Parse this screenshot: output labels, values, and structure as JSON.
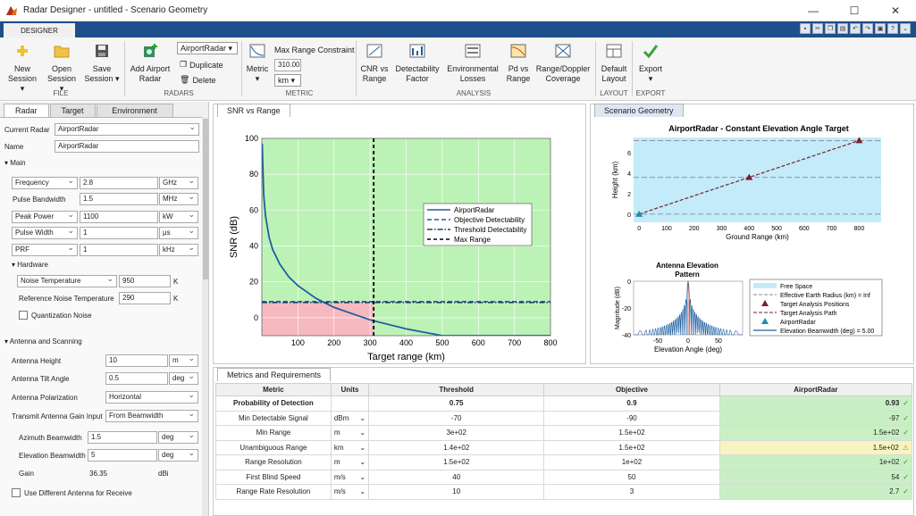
{
  "window": {
    "title": "Radar Designer - untitled - Scenario Geometry"
  },
  "app_tab": "DESIGNER",
  "ribbon": {
    "file": {
      "group": "FILE",
      "new": [
        "New",
        "Session"
      ],
      "open": [
        "Open",
        "Session"
      ],
      "save": [
        "Save",
        "Session"
      ]
    },
    "radars": {
      "group": "RADARS",
      "add": [
        "Add Airport",
        "Radar"
      ],
      "current": "AirportRadar",
      "duplicate": "Duplicate",
      "delete": "Delete"
    },
    "metric": {
      "group": "METRIC",
      "label": "Metric",
      "constraint_title": "Max Range Constraint",
      "constraint_value": "310.00",
      "unit": "km"
    },
    "analysis": {
      "group": "ANALYSIS",
      "items": [
        [
          "CNR vs",
          "Range"
        ],
        [
          "Detectability",
          "Factor"
        ],
        [
          "Environmental",
          "Losses"
        ],
        [
          "Pd vs",
          "Range"
        ],
        [
          "Range/Doppler",
          "Coverage"
        ]
      ]
    },
    "layout": {
      "group": "LAYOUT",
      "label": [
        "Default",
        "Layout"
      ]
    },
    "export": {
      "group": "EXPORT",
      "label": "Export"
    }
  },
  "left": {
    "tabs": [
      "Radar",
      "Target",
      "Environment"
    ],
    "current_radar_label": "Current Radar",
    "current_radar": "AirportRadar",
    "name_label": "Name",
    "name": "AirportRadar",
    "main": "Main",
    "main_rows": [
      {
        "label": "Frequency",
        "value": "2.8",
        "unit": "GHz"
      },
      {
        "label": "Pulse Bandwidth",
        "value": "1.5",
        "unit": "MHz"
      },
      {
        "label": "Peak Power",
        "value": "1100",
        "unit": "kW"
      },
      {
        "label": "Pulse Width",
        "value": "1",
        "unit": "μs"
      },
      {
        "label": "PRF",
        "value": "1",
        "unit": "kHz"
      }
    ],
    "hardware": "Hardware",
    "noise_temp_label": "Noise Temperature",
    "noise_temp": "950",
    "ref_noise_label": "Reference Noise Temperature",
    "ref_noise": "290",
    "kelvin": "K",
    "quant": "Quantization Noise",
    "antenna": "Antenna and Scanning",
    "ant_height_label": "Antenna Height",
    "ant_height": "10",
    "ant_height_unit": "m",
    "tilt_label": "Antenna Tilt Angle",
    "tilt": "0.5",
    "tilt_unit": "deg",
    "pol_label": "Antenna Polarization",
    "pol": "Horizontal",
    "gain_input_label": "Transmit Antenna Gain Input",
    "gain_input": "From Beamwidth",
    "az_label": "Azimuth Beamwidth",
    "az": "1.5",
    "az_unit": "deg",
    "el_label": "Elevation Beamwidth",
    "el": "5",
    "el_unit": "deg",
    "gain_label": "Gain",
    "gain": "36.35",
    "gain_unit": "dBi",
    "diff_ant": "Use Different Antenna for Receive"
  },
  "snr_tab": "SNR vs Range",
  "scen_tab": "Scenario Geometry",
  "metrics_tab": "Metrics and Requirements",
  "chart_data": [
    {
      "type": "line",
      "xlabel": "Target range (km)",
      "ylabel": "SNR (dB)",
      "xlim": [
        0,
        800
      ],
      "ylim": [
        -10,
        100
      ],
      "xticks": [
        100,
        200,
        300,
        400,
        500,
        600,
        700,
        800
      ],
      "yticks": [
        0,
        20,
        40,
        60,
        80,
        100
      ],
      "legend": [
        "AirportRadar",
        "Objective Detectability",
        "Threshold Detectability",
        "Max Range"
      ],
      "legend_position": "top-right",
      "series": [
        {
          "name": "AirportRadar",
          "x": [
            1,
            5,
            10,
            20,
            30,
            50,
            75,
            100,
            150,
            200,
            300,
            400,
            500,
            600,
            700,
            800
          ],
          "y": [
            97,
            69,
            57,
            45,
            38,
            29.8,
            22.7,
            17.9,
            10.8,
            5.8,
            -1.2,
            -6.2,
            -10.1,
            -13.3,
            -16,
            -18.3
          ]
        },
        {
          "name": "Objective Detectability",
          "y_const": 9
        },
        {
          "name": "Threshold Detectability",
          "y_const": 8.5
        },
        {
          "name": "Max Range",
          "x_const": 310
        }
      ]
    },
    {
      "type": "line",
      "title": "AirportRadar - Constant Elevation Angle Target",
      "xlabel": "Ground Range (km)",
      "ylabel": "Height (km)",
      "xlim": [
        -20,
        880
      ],
      "ylim": [
        -0.8,
        7.5
      ],
      "xticks": [
        0,
        100,
        200,
        300,
        400,
        500,
        600,
        700,
        800
      ],
      "yticks": [
        0,
        2,
        4,
        6
      ],
      "series": [
        {
          "name": "Target Analysis Path",
          "x": [
            0,
            400,
            800
          ],
          "y": [
            0,
            3.6,
            7.2
          ]
        },
        {
          "name": "Target Analysis Positions",
          "x": [
            400,
            800
          ],
          "y": [
            3.6,
            7.2
          ]
        },
        {
          "name": "AirportRadar",
          "x": [
            0
          ],
          "y": [
            0
          ]
        }
      ],
      "hlines": [
        0,
        3.6,
        7.2
      ]
    },
    {
      "type": "line",
      "title": "Antenna Elevation Pattern",
      "xlabel": "Elevation Angle (deg)",
      "ylabel": "Magnitude (dB)",
      "xlim": [
        -90,
        90
      ],
      "ylim": [
        -40,
        0
      ],
      "xticks": [
        -50,
        0,
        50
      ],
      "yticks": [
        0,
        -20,
        -40
      ]
    }
  ],
  "scen_legend": [
    "Free Space",
    "Effective Earth Radius (km) = Inf",
    "Target Analysis Positions",
    "Target Analysis Path",
    "AirportRadar",
    "Elevation Beamwidth (deg) = 5.00"
  ],
  "metrics": {
    "headers": [
      "Metric",
      "Units",
      "Threshold",
      "Objective",
      "AirportRadar"
    ],
    "rows": [
      {
        "metric": "Probability of Detection",
        "unit": "",
        "threshold": "0.75",
        "objective": "0.9",
        "value": "0.93",
        "status": "ok",
        "bold": true
      },
      {
        "metric": "Min Detectable Signal",
        "unit": "dBm",
        "threshold": "-70",
        "objective": "-90",
        "value": "-97",
        "status": "ok"
      },
      {
        "metric": "Min Range",
        "unit": "m",
        "threshold": "3e+02",
        "objective": "1.5e+02",
        "value": "1.5e+02",
        "status": "ok"
      },
      {
        "metric": "Unambiguous Range",
        "unit": "km",
        "threshold": "1.4e+02",
        "objective": "1.5e+02",
        "value": "1.5e+02",
        "status": "warn"
      },
      {
        "metric": "Range Resolution",
        "unit": "m",
        "threshold": "1.5e+02",
        "objective": "1e+02",
        "value": "1e+02",
        "status": "ok"
      },
      {
        "metric": "First Blind Speed",
        "unit": "m/s",
        "threshold": "40",
        "objective": "50",
        "value": "54",
        "status": "ok"
      },
      {
        "metric": "Range Rate Resolution",
        "unit": "m/s",
        "threshold": "10",
        "objective": "3",
        "value": "2.7",
        "status": "ok"
      }
    ]
  },
  "colors": {
    "tabstrip": "#1e4f8a",
    "green": "#c9f0c4",
    "red_zone": "#f6b9bf",
    "green_zone": "#bdf2b6",
    "line": "#1f5fa0",
    "scene_bg": "#c3ebfa"
  }
}
